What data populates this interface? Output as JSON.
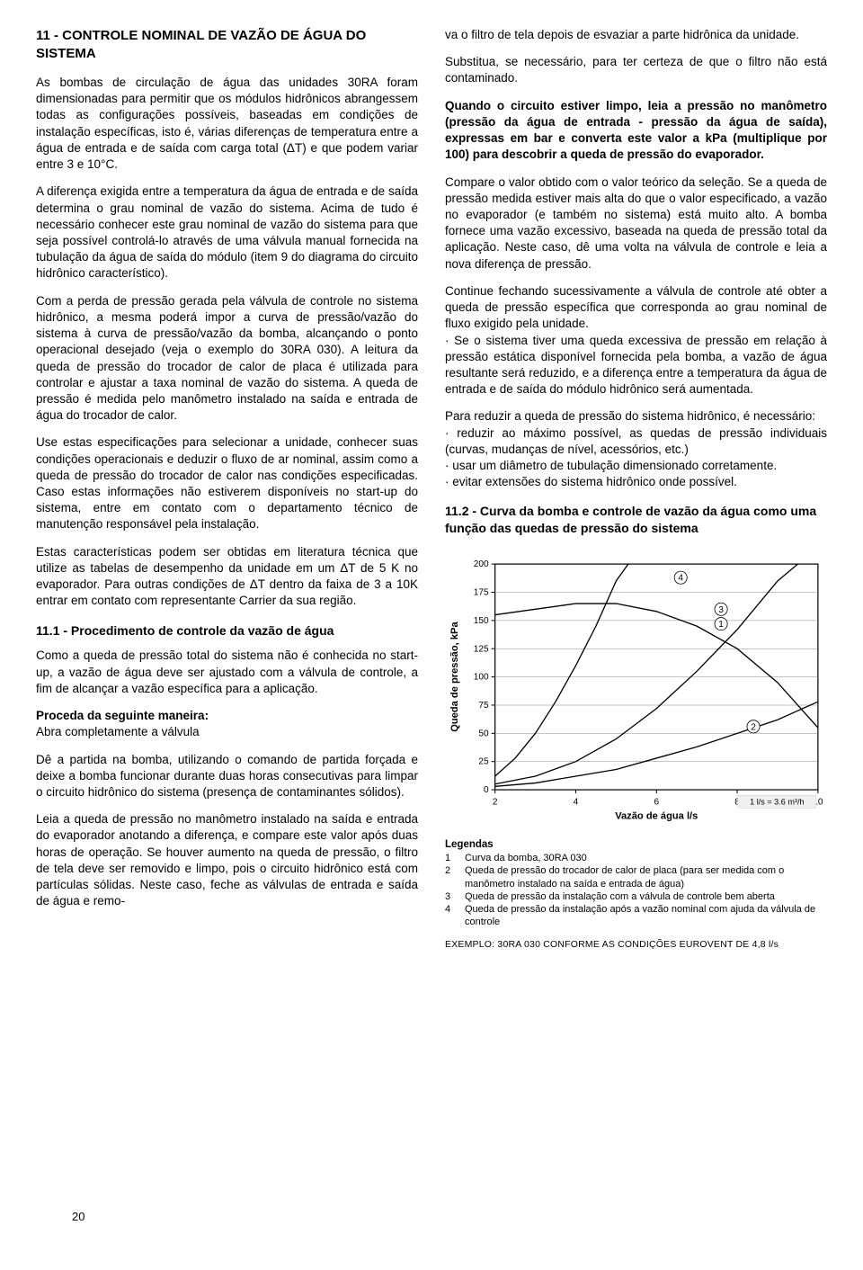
{
  "page_number": "20",
  "left": {
    "h1": "11 - CONTROLE NOMINAL DE VAZÃO DE ÁGUA DO SISTEMA",
    "p1": "As bombas de circulação de água das unidades 30RA foram dimensionadas para permitir que os módulos hidrônicos abrangessem todas as configurações possíveis, baseadas em condições de instalação específicas, isto é, várias diferenças de temperatura entre a água de entrada e de saída com carga total (ΔT) e que podem variar entre 3 e 10°C.",
    "p2": "A diferença exigida entre a temperatura da água de entrada e de saída determina o grau nominal de vazão do sistema. Acima de tudo é necessário conhecer este grau nominal de vazão do sistema para que seja possível controlá-lo através de uma válvula manual fornecida na tubulação da água de saída do módulo (item 9 do diagrama do circuito hidrônico característico).",
    "p3": "Com a perda de pressão gerada pela válvula de controle no sistema hidrônico, a mesma poderá impor a curva de pressão/vazão do sistema à curva de pressão/vazão da bomba, alcançando o ponto operacional desejado (veja o exemplo do 30RA 030). A leitura da queda de pressão do trocador de calor de placa é utilizada para controlar e ajustar a taxa nominal de vazão do sistema. A queda de pressão é medida pelo manômetro instalado na saída e entrada de água do trocador de calor.",
    "p4": "Use estas especificações para selecionar a unidade, conhecer suas condições operacionais e deduzir o fluxo de ar nominal, assim como a queda de pressão do trocador de calor nas condições especificadas. Caso estas informações não estiverem disponíveis no start-up do sistema, entre em contato com o departamento técnico de manutenção responsável pela instalação.",
    "p5": "Estas características podem ser obtidas em literatura técnica que utilize as tabelas de desempenho da unidade em um ΔT de 5 K no evaporador. Para outras condições de ΔT dentro da faixa de 3 a 10K entrar em contato com representante Carrier da sua região.",
    "h2a": "11.1 - Procedimento de controle da vazão de água",
    "p6": "Como a queda de pressão total do sistema não é conhecida no start-up, a vazão de água deve ser ajustado com a válvula de controle, a fim de alcançar a vazão específica para a aplicação.",
    "p7a": "Proceda da seguinte maneira:",
    "p7b": "Abra completamente a válvula",
    "p8": "Dê a partida na bomba, utilizando o comando de partida forçada e deixe a bomba funcionar durante duas horas consecutivas para limpar o circuito hidrônico do sistema (presença de contaminantes sólidos).",
    "p9": "Leia a queda de pressão no manômetro instalado na saída e entrada do evaporador anotando a diferença, e compare este valor após duas horas de operação. Se houver aumento na queda de pressão, o filtro de tela deve ser removido e limpo, pois o circuito hidrônico está com partículas sólidas. Neste caso, feche as válvulas de entrada e saída de água e remo-"
  },
  "right": {
    "p1": "va o filtro de tela depois de esvaziar a parte hidrônica da unidade.",
    "p2": "Substitua, se necessário, para ter certeza de que o filtro não está contaminado.",
    "p3": "Quando o circuito estiver limpo, leia a pressão no manômetro (pressão da água de entrada - pressão da água de saída), expressas em bar e converta este valor a kPa (multiplique por 100) para descobrir a queda de pressão do evaporador.",
    "p4": "Compare o valor obtido com o valor teórico da seleção. Se a queda de pressão medida estiver mais alta do que o valor especificado, a vazão no evaporador (e também no sistema) está muito alto. A bomba fornece uma vazão excessivo, baseada na queda de pressão total da aplicação. Neste caso, dê uma volta na válvula de controle e leia a nova diferença de pressão.",
    "p5": "Continue fechando sucessivamente a válvula de controle até obter a queda de pressão específica que corresponda ao grau nominal de fluxo exigido pela unidade.",
    "p5b": "· Se o sistema tiver uma queda excessiva de pressão em relação à pressão estática disponível fornecida pela bomba, a vazão de água resultante será reduzido, e a diferença entre a temperatura da água de entrada e de saída do módulo hidrônico será aumentada.",
    "p6": "Para reduzir a queda de pressão do sistema hidrônico, é necessário:",
    "p6a": "· reduzir ao máximo possível, as quedas de pressão individuais (curvas, mudanças de nível, acessórios, etc.)",
    "p6b": "· usar um diâmetro de tubulação dimensionado corretamente.",
    "p6c": "· evitar extensões do sistema hidrônico onde possível.",
    "h2b": "11.2 - Curva da bomba e controle de vazão da água como uma função das quedas de pressão do sistema"
  },
  "chart": {
    "type": "line",
    "xlabel": "Vazão de água l/s",
    "ylabel": "Queda de pressão, kPa",
    "xlim": [
      2,
      10
    ],
    "ylim": [
      0,
      200
    ],
    "xtick_step": 2,
    "ytick_step": 25,
    "xticks": [
      "2",
      "4",
      "6",
      "8",
      "10"
    ],
    "yticks": [
      "0",
      "25",
      "50",
      "75",
      "100",
      "125",
      "150",
      "175",
      "200"
    ],
    "background_color": "#ffffff",
    "grid_color": "#888888",
    "axis_color": "#000000",
    "tick_fontsize": 10,
    "label_fontsize": 11,
    "footnote": "1 l/s = 3.6 m³/h",
    "series": [
      {
        "id": "1",
        "label_pos": [
          7.6,
          147
        ],
        "color": "#000000",
        "width": 1.3,
        "points": [
          [
            2,
            155
          ],
          [
            3,
            160
          ],
          [
            4,
            165
          ],
          [
            5,
            165
          ],
          [
            6,
            158
          ],
          [
            7,
            145
          ],
          [
            8,
            125
          ],
          [
            9,
            95
          ],
          [
            10,
            55
          ]
        ]
      },
      {
        "id": "2",
        "label_pos": [
          8.4,
          56
        ],
        "color": "#000000",
        "width": 1.3,
        "points": [
          [
            2,
            3
          ],
          [
            3,
            6
          ],
          [
            4,
            12
          ],
          [
            5,
            18
          ],
          [
            6,
            28
          ],
          [
            7,
            38
          ],
          [
            8,
            50
          ],
          [
            9,
            62
          ],
          [
            10,
            78
          ]
        ]
      },
      {
        "id": "3",
        "label_pos": [
          7.6,
          160
        ],
        "color": "#000000",
        "width": 1.3,
        "points": [
          [
            2,
            5
          ],
          [
            3,
            12
          ],
          [
            4,
            25
          ],
          [
            5,
            45
          ],
          [
            6,
            72
          ],
          [
            7,
            105
          ],
          [
            8,
            142
          ],
          [
            9,
            185
          ],
          [
            9.5,
            200
          ]
        ]
      },
      {
        "id": "4",
        "label_pos": [
          6.6,
          188
        ],
        "color": "#000000",
        "width": 1.3,
        "points": [
          [
            2,
            12
          ],
          [
            2.5,
            28
          ],
          [
            3,
            50
          ],
          [
            3.5,
            78
          ],
          [
            4,
            110
          ],
          [
            4.5,
            145
          ],
          [
            5,
            185
          ],
          [
            5.3,
            200
          ]
        ]
      }
    ]
  },
  "legend": {
    "title": "Legendas",
    "rows": [
      {
        "n": "1",
        "t": "Curva da bomba, 30RA 030"
      },
      {
        "n": "2",
        "t": "Queda de pressão do trocador de calor de placa (para ser medida com o manômetro instalado na saída e entrada de água)"
      },
      {
        "n": "3",
        "t": "Queda de pressão da instalação com a válvula de controle bem aberta"
      },
      {
        "n": "4",
        "t": "Queda de pressão da instalação após a vazão nominal com ajuda da válvula de controle"
      }
    ],
    "example": "EXEMPLO: 30RA 030 CONFORME AS CONDIÇÕES EUROVENT DE 4,8 l/s"
  }
}
